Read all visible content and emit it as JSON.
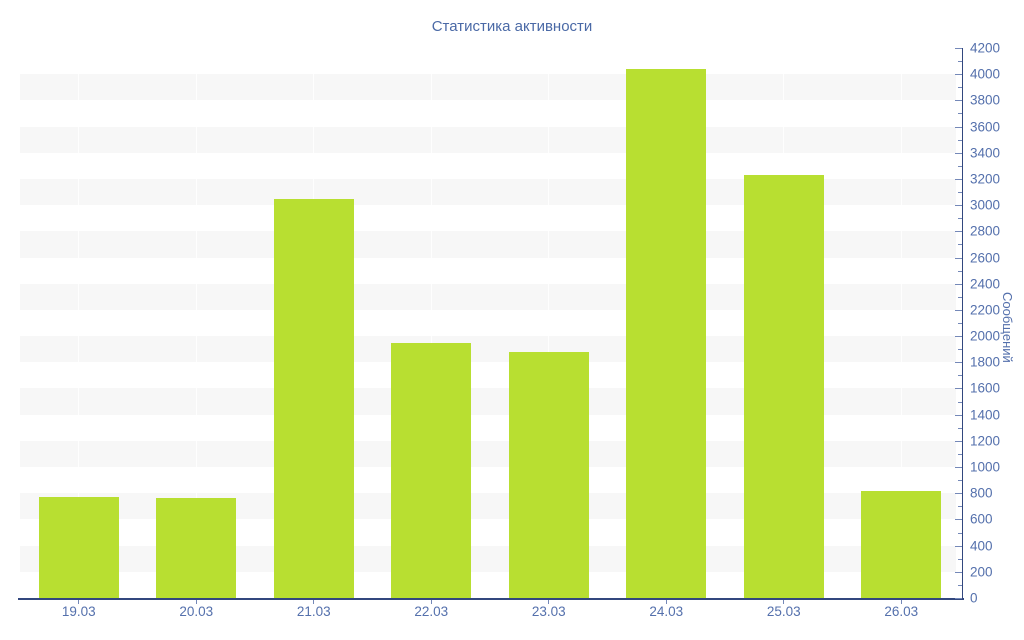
{
  "chart_data": {
    "type": "bar",
    "title": "Статистика активности",
    "ylabel": "Сообщений",
    "xlabel": "",
    "categories": [
      "19.03",
      "20.03",
      "21.03",
      "22.03",
      "23.03",
      "24.03",
      "25.03",
      "26.03"
    ],
    "values": [
      775,
      760,
      3050,
      1950,
      1880,
      4040,
      3230,
      820
    ],
    "ylim": [
      0,
      4200
    ],
    "ytick_step": 200,
    "ytick_minor_step": 100,
    "band_step": 200,
    "legend": "none",
    "grid": "alternating-horizontal-bands",
    "colors": {
      "bar": "#b8df31",
      "band": "#f7f7f7",
      "axis": "#32477e",
      "tick": "#7488b8",
      "label": "#5470ac",
      "title": "#4a69a6",
      "background": "#ffffff"
    }
  }
}
